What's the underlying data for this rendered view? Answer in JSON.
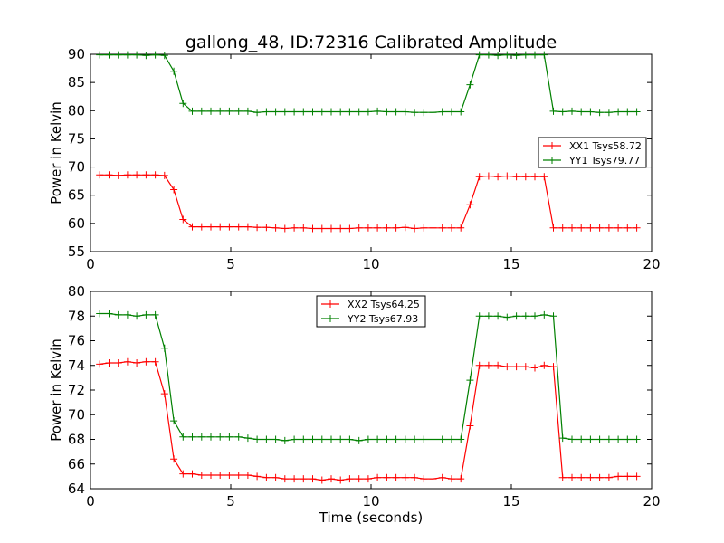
{
  "title": "gallong_48, ID:72316 Calibrated Amplitude",
  "colors": {
    "red": "#ff0000",
    "green": "#008000"
  },
  "chart_data": [
    {
      "type": "line",
      "xlabel": "",
      "ylabel": "Power in Kelvin",
      "xlim": [
        0,
        20
      ],
      "ylim": [
        55,
        90
      ],
      "xticks": [
        "0",
        "5",
        "10",
        "15",
        "20"
      ],
      "yticks": [
        "55",
        "60",
        "65",
        "70",
        "75",
        "80",
        "85",
        "90"
      ],
      "grid": false,
      "legend_position": "center-right",
      "x": [
        0.33,
        0.66,
        0.99,
        1.32,
        1.65,
        1.98,
        2.31,
        2.64,
        2.97,
        3.3,
        3.63,
        3.96,
        4.29,
        4.62,
        4.95,
        5.28,
        5.61,
        5.94,
        6.27,
        6.6,
        6.93,
        7.26,
        7.59,
        7.92,
        8.25,
        8.58,
        8.91,
        9.24,
        9.57,
        9.9,
        10.23,
        10.56,
        10.89,
        11.22,
        11.55,
        11.88,
        12.21,
        12.54,
        12.87,
        13.2,
        13.53,
        13.86,
        14.19,
        14.52,
        14.85,
        15.18,
        15.51,
        15.84,
        16.17,
        16.5,
        16.83,
        17.16,
        17.49,
        17.82,
        18.15,
        18.48,
        18.81,
        19.14,
        19.47
      ],
      "series": [
        {
          "name": "XX1 Tsys58.72",
          "color": "#ff0000",
          "values": [
            68.6,
            68.6,
            68.5,
            68.6,
            68.6,
            68.6,
            68.6,
            68.5,
            66.0,
            60.7,
            59.4,
            59.4,
            59.4,
            59.4,
            59.4,
            59.4,
            59.4,
            59.3,
            59.3,
            59.2,
            59.1,
            59.2,
            59.2,
            59.1,
            59.1,
            59.1,
            59.1,
            59.1,
            59.2,
            59.2,
            59.2,
            59.2,
            59.2,
            59.3,
            59.1,
            59.2,
            59.2,
            59.2,
            59.2,
            59.2,
            63.3,
            68.3,
            68.4,
            68.3,
            68.4,
            68.3,
            68.3,
            68.3,
            68.3,
            59.2,
            59.2,
            59.2,
            59.2,
            59.2,
            59.2,
            59.2,
            59.2,
            59.2,
            59.2
          ]
        },
        {
          "name": "YY1 Tsys79.77",
          "color": "#008000",
          "values": [
            89.9,
            89.9,
            89.9,
            89.9,
            89.9,
            89.8,
            89.9,
            89.8,
            87.0,
            81.3,
            79.9,
            79.9,
            79.9,
            79.9,
            79.9,
            79.9,
            79.9,
            79.7,
            79.8,
            79.8,
            79.8,
            79.8,
            79.8,
            79.8,
            79.8,
            79.8,
            79.8,
            79.8,
            79.8,
            79.8,
            79.9,
            79.8,
            79.8,
            79.8,
            79.7,
            79.7,
            79.7,
            79.8,
            79.8,
            79.8,
            84.6,
            89.9,
            89.9,
            89.8,
            89.9,
            89.8,
            89.9,
            89.9,
            89.9,
            79.9,
            79.8,
            79.9,
            79.8,
            79.8,
            79.7,
            79.7,
            79.8,
            79.8,
            79.8
          ]
        }
      ]
    },
    {
      "type": "line",
      "xlabel": "Time (seconds)",
      "ylabel": "Power in Kelvin",
      "xlim": [
        0,
        20
      ],
      "ylim": [
        64,
        80
      ],
      "xticks": [
        "0",
        "5",
        "10",
        "15",
        "20"
      ],
      "yticks": [
        "64",
        "66",
        "68",
        "70",
        "72",
        "74",
        "76",
        "78",
        "80"
      ],
      "grid": false,
      "legend_position": "top-center",
      "x": [
        0.33,
        0.66,
        0.99,
        1.32,
        1.65,
        1.98,
        2.31,
        2.64,
        2.97,
        3.3,
        3.63,
        3.96,
        4.29,
        4.62,
        4.95,
        5.28,
        5.61,
        5.94,
        6.27,
        6.6,
        6.93,
        7.26,
        7.59,
        7.92,
        8.25,
        8.58,
        8.91,
        9.24,
        9.57,
        9.9,
        10.23,
        10.56,
        10.89,
        11.22,
        11.55,
        11.88,
        12.21,
        12.54,
        12.87,
        13.2,
        13.53,
        13.86,
        14.19,
        14.52,
        14.85,
        15.18,
        15.51,
        15.84,
        16.17,
        16.5,
        16.83,
        17.16,
        17.49,
        17.82,
        18.15,
        18.48,
        18.81,
        19.14,
        19.47
      ],
      "series": [
        {
          "name": "XX2 Tsys64.25",
          "color": "#ff0000",
          "values": [
            74.1,
            74.2,
            74.2,
            74.3,
            74.2,
            74.3,
            74.3,
            71.7,
            66.4,
            65.2,
            65.2,
            65.1,
            65.1,
            65.1,
            65.1,
            65.1,
            65.1,
            65.0,
            64.9,
            64.9,
            64.8,
            64.8,
            64.8,
            64.8,
            64.7,
            64.8,
            64.7,
            64.8,
            64.8,
            64.8,
            64.9,
            64.9,
            64.9,
            64.9,
            64.9,
            64.8,
            64.8,
            64.9,
            64.8,
            64.8,
            69.1,
            74.0,
            74.0,
            74.0,
            73.9,
            73.9,
            73.9,
            73.8,
            74.0,
            73.9,
            64.9,
            64.9,
            64.9,
            64.9,
            64.9,
            64.9,
            65.0,
            65.0,
            65.0
          ]
        },
        {
          "name": "YY2 Tsys67.93",
          "color": "#008000",
          "values": [
            78.2,
            78.2,
            78.1,
            78.1,
            78.0,
            78.1,
            78.1,
            75.4,
            69.5,
            68.2,
            68.2,
            68.2,
            68.2,
            68.2,
            68.2,
            68.2,
            68.1,
            68.0,
            68.0,
            68.0,
            67.9,
            68.0,
            68.0,
            68.0,
            68.0,
            68.0,
            68.0,
            68.0,
            67.9,
            68.0,
            68.0,
            68.0,
            68.0,
            68.0,
            68.0,
            68.0,
            68.0,
            68.0,
            68.0,
            68.0,
            72.8,
            78.0,
            78.0,
            78.0,
            77.9,
            78.0,
            78.0,
            78.0,
            78.1,
            78.0,
            68.1,
            68.0,
            68.0,
            68.0,
            68.0,
            68.0,
            68.0,
            68.0,
            68.0
          ]
        }
      ]
    }
  ]
}
